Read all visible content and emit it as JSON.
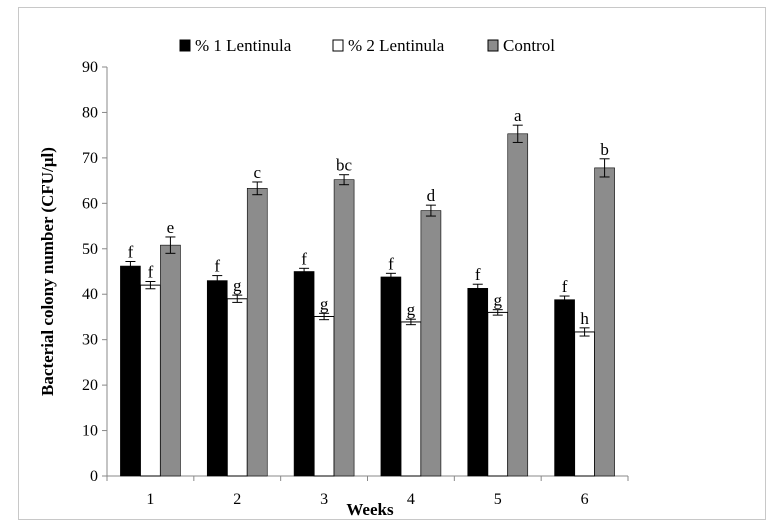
{
  "chart_data": {
    "type": "bar",
    "categories": [
      "1",
      "2",
      "3",
      "4",
      "5",
      "6"
    ],
    "xlabel": "Weeks",
    "ylabel": "Bacterial colony number  (CFU/µl)",
    "ylim": [
      0,
      90
    ],
    "yticks": [
      0,
      10,
      20,
      30,
      40,
      50,
      60,
      70,
      80,
      90
    ],
    "legend_position": "top",
    "grid": false,
    "series": [
      {
        "name": "% 1 Lentinula",
        "color": "#000000",
        "values": [
          46.2,
          43.0,
          45.0,
          43.8,
          41.3,
          38.8
        ],
        "errors": [
          1.0,
          1.1,
          0.7,
          0.8,
          0.9,
          0.8
        ],
        "letters": [
          "f",
          "f",
          "f",
          "f",
          "f",
          "f"
        ]
      },
      {
        "name": "% 2 Lentinula",
        "color": "#ffffff",
        "values": [
          42.0,
          39.0,
          35.1,
          33.9,
          36.0,
          31.7
        ],
        "errors": [
          0.8,
          0.8,
          0.7,
          0.6,
          0.6,
          0.9
        ],
        "letters": [
          "f",
          "g",
          "g",
          "g",
          "g",
          "h"
        ]
      },
      {
        "name": "Control",
        "color": "#8c8c8c",
        "values": [
          50.8,
          63.3,
          65.2,
          58.4,
          75.3,
          67.8
        ],
        "errors": [
          1.8,
          1.4,
          1.1,
          1.2,
          1.9,
          2.0
        ],
        "letters": [
          "e",
          "c",
          "bc",
          "d",
          "a",
          "b"
        ]
      }
    ]
  }
}
